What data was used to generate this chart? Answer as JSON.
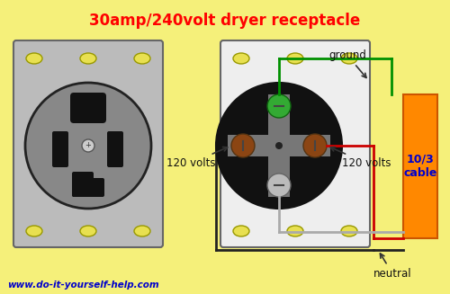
{
  "title": "30amp/240volt dryer receptacle",
  "title_color": "#ff0000",
  "title_fontsize": 12,
  "bg": "#f5f07a",
  "website_text": "www.do-it-yourself-help.com",
  "website_color": "#0000cc",
  "cable_label": "10/3\ncable",
  "wire_green": "#009000",
  "wire_red": "#cc0000",
  "wire_gray": "#aaaaaa",
  "wire_black": "#222222",
  "screw_fill": "#e8e050",
  "screw_edge": "#999900",
  "plate_left_fill": "#bbbbbb",
  "plate_right_fill": "#eeeeee",
  "plate_edge": "#666666",
  "circle_outer": "#111111",
  "circle_inner": "#555555",
  "cross_color": "#777777",
  "terminal_brown": "#8B4513",
  "terminal_green": "#228B22",
  "terminal_silver": "#aaaaaa",
  "cable_fill": "#ff8800",
  "text_color": "#111111",
  "label_color_blue": "#0000cc"
}
